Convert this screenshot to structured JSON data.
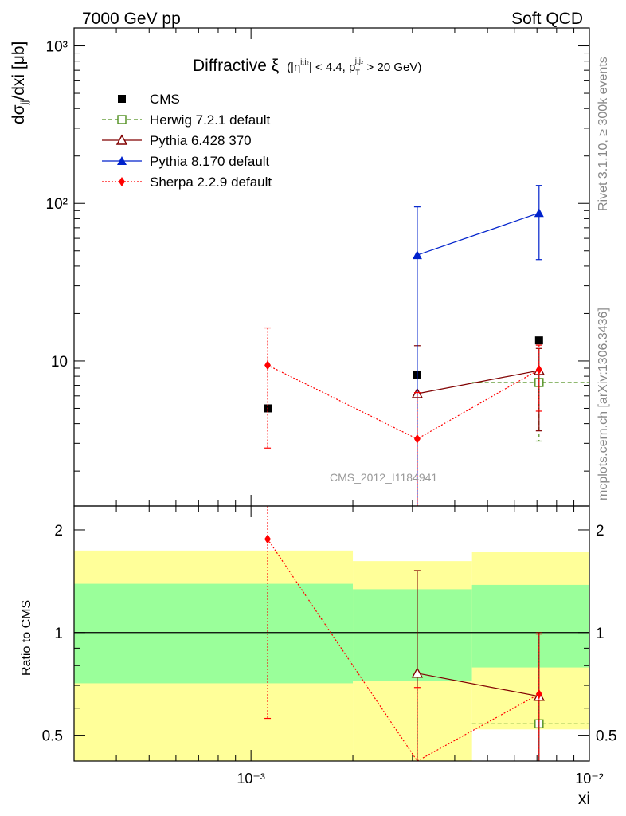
{
  "header": {
    "left": "7000 GeV pp",
    "right": "Soft QCD"
  },
  "side": {
    "rivet": "Rivet 3.1.10, ≥ 300k events",
    "mcplots": "mcplots.cern.ch [arXiv:1306.3436]"
  },
  "chart_data": [
    {
      "type": "scatter",
      "title": "Diffractive ξ",
      "title_cut": {
        "eta_prefix": "(|η",
        "eta_sup": "j₁j₂",
        "eta_rest": "| < 4.4, p",
        "pt_sub": "T",
        "pt_sup": "j₁j₂",
        "tail": " > 20 GeV)"
      },
      "ylabel": {
        "prefix": "dσ",
        "sub": "jj",
        "suffix": "/dxi [μb]"
      },
      "xscale": "log",
      "yscale": "log",
      "xlim": [
        0.0003,
        0.01
      ],
      "ylim": [
        1.2,
        1300
      ],
      "ytick_labels": [
        "10",
        "10²",
        "10³"
      ],
      "watermark": "CMS_2012_I1184941",
      "legend_position": "top-left",
      "series": [
        {
          "name": "CMS",
          "color": "#000000",
          "marker": "square-filled",
          "x": [
            0.00112,
            0.0031,
            0.0071
          ],
          "y": [
            5.0,
            8.2,
            13.5
          ],
          "yerr_lo": [
            0,
            0,
            0
          ],
          "yerr_hi": [
            0,
            0,
            0
          ],
          "xbins": [
            [
              0.0003,
              0.002
            ],
            [
              0.002,
              0.0045
            ],
            [
              0.0045,
              0.01
            ]
          ]
        },
        {
          "name": "Herwig 7.2.1 default",
          "color": "#4e8f1c",
          "marker": "square-open",
          "line": "dashed",
          "x": [
            0.0071
          ],
          "y": [
            7.3
          ],
          "yerr_lo": [
            4.2
          ],
          "yerr_hi": [
            0
          ],
          "xbins": [
            [
              0.0045,
              0.01
            ]
          ]
        },
        {
          "name": "Pythia 6.428 370",
          "color": "#800000",
          "marker": "triangle-open",
          "line": "solid",
          "x": [
            0.0031,
            0.0071
          ],
          "y": [
            6.2,
            8.7
          ],
          "yerr_lo": [
            5.0,
            5.1
          ],
          "yerr_hi": [
            6.3,
            3.3
          ],
          "xbins": []
        },
        {
          "name": "Pythia 8.170 default",
          "color": "#0022cc",
          "marker": "triangle-filled",
          "line": "solid",
          "x": [
            0.0031,
            0.0071
          ],
          "y": [
            47,
            87
          ],
          "yerr_lo": [
            46,
            43
          ],
          "yerr_hi": [
            48,
            43
          ],
          "xbins": []
        },
        {
          "name": "Sherpa 2.2.9 default",
          "color": "#ff0000",
          "marker": "diamond-filled",
          "line": "dotted",
          "x": [
            0.00112,
            0.0031,
            0.0071
          ],
          "y": [
            9.4,
            3.2,
            8.8
          ],
          "yerr_lo": [
            6.6,
            3.1,
            4.0
          ],
          "yerr_hi": [
            6.8,
            3.1,
            3.8
          ],
          "xbins": []
        }
      ]
    },
    {
      "type": "scatter",
      "ylabel": "Ratio to CMS",
      "xlabel": "xi",
      "xscale": "log",
      "xlim": [
        0.0003,
        0.01
      ],
      "ylim": [
        0.42,
        2.35
      ],
      "ytick_labels": [
        "0.5",
        "1",
        "2"
      ],
      "xtick_labels": [
        "10⁻³",
        "10⁻²"
      ],
      "reference_line": 1,
      "bands": [
        {
          "xbins": [
            0.0003,
            0.002
          ],
          "green": [
            0.71,
            1.39
          ],
          "yellow": [
            0.42,
            1.74
          ]
        },
        {
          "xbins": [
            0.002,
            0.0045
          ],
          "green": [
            0.72,
            1.34
          ],
          "yellow": [
            0.42,
            1.62
          ]
        },
        {
          "xbins": [
            0.0045,
            0.01
          ],
          "green": [
            0.79,
            1.38
          ],
          "yellow": [
            0.52,
            1.72
          ]
        }
      ],
      "band_colors": {
        "green": "#9aff9a",
        "yellow": "#ffff99"
      },
      "series": [
        {
          "name": "Herwig 7.2.1 default",
          "color": "#4e8f1c",
          "marker": "square-open",
          "line": "dashed",
          "x": [
            0.0071
          ],
          "y": [
            0.54
          ],
          "yerr_lo": [
            0
          ],
          "yerr_hi": [
            0
          ],
          "xbins": [
            [
              0.0045,
              0.01
            ]
          ]
        },
        {
          "name": "Pythia 6.428 370",
          "color": "#800000",
          "marker": "triangle-open",
          "line": "solid",
          "x": [
            0.0031,
            0.0071
          ],
          "y": [
            0.76,
            0.65
          ],
          "yerr_lo": [
            0.4,
            0.25
          ],
          "yerr_hi": [
            0.76,
            0.35
          ]
        },
        {
          "name": "Sherpa 2.2.9 default",
          "color": "#ff0000",
          "marker": "diamond-filled",
          "line": "dotted",
          "x": [
            0.00112,
            0.0031,
            0.0071
          ],
          "y": [
            1.88,
            0.39,
            0.66
          ],
          "yerr_lo": [
            1.32,
            0.3,
            0.26
          ],
          "yerr_hi": [
            0.8,
            0.3,
            0.33
          ]
        }
      ]
    }
  ]
}
